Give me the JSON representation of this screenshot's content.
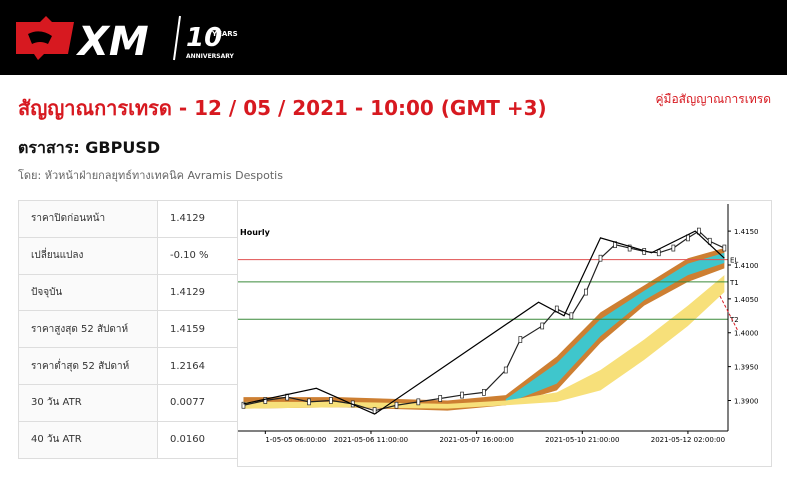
{
  "header": {
    "logo": "XM",
    "badge": "10",
    "badge_top": "YEARS",
    "badge_bottom": "ANNIVERSARY"
  },
  "title": "สัญญาณการเทรด - 12 / 05 / 2021 - 10:00 (GMT +3)",
  "guide_link": "คู่มือสัญญาณการเทรด",
  "instrument": "ตราสาร: GBPUSD",
  "byline": "โดย: หัวหน้าฝ่ายกลยุทธ์ทางเทคนิค Avramis Despotis",
  "table": {
    "rows": [
      [
        "ราคาปิดก่อนหน้า",
        "1.4129"
      ],
      [
        "เปลี่ยนแปลง",
        "-0.10 %"
      ],
      [
        "ปัจจุบัน",
        "1.4129"
      ],
      [
        "ราคาสูงสุด 52 สัปดาห์",
        "1.4159"
      ],
      [
        "ราคาต่ำสุด 52 สัปดาห์",
        "1.2164"
      ],
      [
        "30 วัน ATR",
        "0.0077"
      ],
      [
        "40 วัน ATR",
        "0.0160"
      ]
    ]
  },
  "chart_data": {
    "type": "line",
    "title": "Hourly",
    "x": [
      -6,
      0,
      6,
      12,
      18,
      24,
      30,
      36,
      42,
      48,
      54,
      60,
      66,
      70,
      76,
      80,
      84,
      88,
      92,
      96,
      100,
      104,
      108,
      112,
      116,
      119,
      122,
      126
    ],
    "values": [
      1.3893,
      1.39,
      1.3905,
      1.3898,
      1.39,
      1.3895,
      1.3885,
      1.3893,
      1.3898,
      1.3903,
      1.3908,
      1.3912,
      1.3945,
      1.399,
      1.401,
      1.4035,
      1.4025,
      1.406,
      1.411,
      1.413,
      1.4125,
      1.412,
      1.4118,
      1.4125,
      1.414,
      1.415,
      1.4135,
      1.4125
    ],
    "color": "#222",
    "zigzag": {
      "x": [
        -6,
        14,
        30,
        75,
        82,
        92,
        106,
        118,
        126
      ],
      "values": [
        1.3895,
        1.3918,
        1.388,
        1.4045,
        1.4025,
        1.414,
        1.4118,
        1.415,
        1.411
      ],
      "color": "#000"
    },
    "bands": [
      {
        "color": "#cd7f32",
        "x": [
          -6,
          20,
          50,
          66,
          80,
          92,
          104,
          116,
          126
        ],
        "upper": [
          1.3905,
          1.3905,
          1.39,
          1.3908,
          1.3965,
          1.403,
          1.407,
          1.411,
          1.4125
        ],
        "lower": [
          1.3888,
          1.389,
          1.3885,
          1.3893,
          1.3915,
          1.3985,
          1.404,
          1.4075,
          1.4095
        ]
      },
      {
        "color": "#3fc6cc",
        "x": [
          66,
          80,
          92,
          104,
          116,
          126
        ],
        "upper": [
          1.3902,
          1.3955,
          1.402,
          1.4062,
          1.4102,
          1.4118
        ],
        "lower": [
          1.3895,
          1.3925,
          1.3995,
          1.4048,
          1.4085,
          1.4103
        ]
      },
      {
        "color": "#f7e07a",
        "x": [
          -6,
          20,
          50,
          66,
          80,
          92,
          104,
          116,
          126
        ],
        "upper": [
          1.3898,
          1.3898,
          1.3895,
          1.39,
          1.3912,
          1.3945,
          1.399,
          1.404,
          1.4085
        ],
        "lower": [
          1.3888,
          1.389,
          1.3888,
          1.3893,
          1.3898,
          1.3915,
          1.396,
          1.401,
          1.406
        ]
      }
    ],
    "levels": [
      {
        "label": "EL",
        "value": 1.4108,
        "color": "#e05050"
      },
      {
        "label": "T1",
        "value": 1.4075,
        "color": "#3a8a3a"
      },
      {
        "label": "T2",
        "value": 1.402,
        "color": "#3a8a3a"
      }
    ],
    "xlim": [
      -7.5,
      127
    ],
    "ylim": [
      1.3855,
      1.419
    ],
    "xticks": [
      {
        "value": 0,
        "label": "1-05-05 06:00:00"
      },
      {
        "value": 29,
        "label": "2021-05-06 11:00:00"
      },
      {
        "value": 58,
        "label": "2021-05-07 16:00:00"
      },
      {
        "value": 87,
        "label": "2021-05-10 21:00:00"
      },
      {
        "value": 116,
        "label": "2021-05-12 02:00:00"
      }
    ],
    "yticks": [
      {
        "value": 1.39,
        "label": "1.3900"
      },
      {
        "value": 1.395,
        "label": "1.3950"
      },
      {
        "value": 1.4,
        "label": "1.4000"
      },
      {
        "value": 1.405,
        "label": "1.4050"
      },
      {
        "value": 1.41,
        "label": "1.4100"
      },
      {
        "value": 1.415,
        "label": "1.4150"
      }
    ]
  }
}
